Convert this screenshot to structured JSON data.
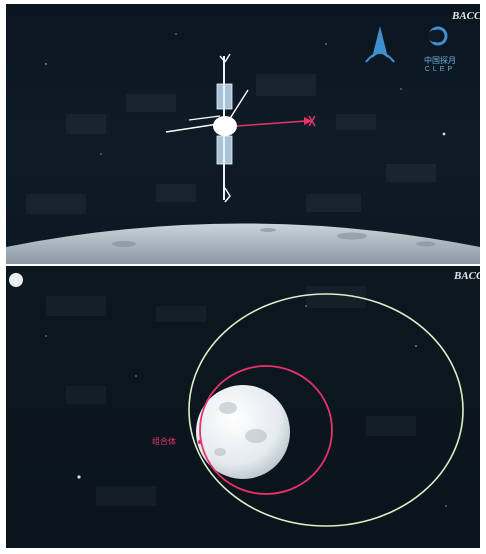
{
  "top_scene": {
    "logo_cn": "中国探月",
    "logo_abbr": "CLEP",
    "watermark": "BACC"
  },
  "bottom_scene": {
    "watermark": "BACC",
    "spacecraft_label": "组合体",
    "orbit_colors": {
      "outer": "#d8f0c8",
      "inner": "#e8336a"
    },
    "label_color": "#e8366a"
  }
}
